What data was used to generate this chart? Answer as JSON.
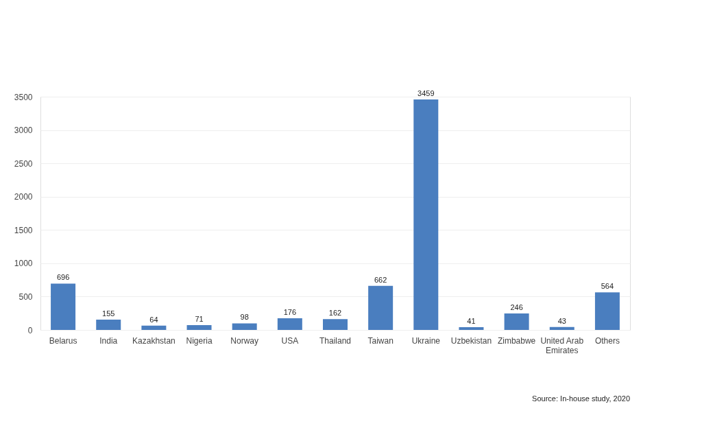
{
  "chart_data": {
    "type": "bar",
    "categories": [
      "Belarus",
      "India",
      "Kazakhstan",
      "Nigeria",
      "Norway",
      "USA",
      "Thailand",
      "Taiwan",
      "Ukraine",
      "Uzbekistan",
      "Zimbabwe",
      "United Arab Emirates",
      "Others"
    ],
    "values": [
      696,
      155,
      64,
      71,
      98,
      176,
      162,
      662,
      3459,
      41,
      246,
      43,
      564
    ],
    "color": "#4a7ebf",
    "ylim": [
      0,
      3500
    ],
    "yticks": [
      0,
      500,
      1000,
      1500,
      2000,
      2500,
      3000,
      3500
    ],
    "grid": "y",
    "data_labels": true,
    "annotations": [
      "Source: In-house study, 2020"
    ]
  }
}
